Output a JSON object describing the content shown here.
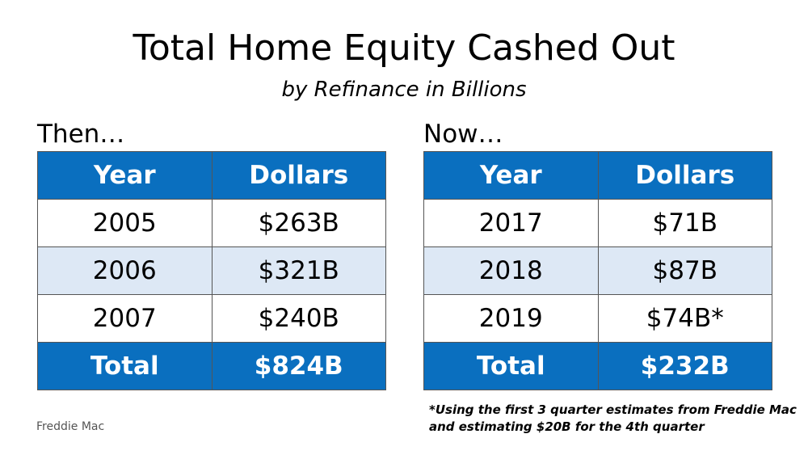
{
  "header": {
    "title": "Total Home Equity Cashed Out",
    "subtitle": "by Refinance in Billions"
  },
  "tables": [
    {
      "label": "Then…",
      "columns": [
        "Year",
        "Dollars"
      ],
      "rows": [
        [
          "2005",
          "$263B"
        ],
        [
          "2006",
          "$321B"
        ],
        [
          "2007",
          "$240B"
        ]
      ],
      "total": [
        "Total",
        "$824B"
      ]
    },
    {
      "label": "Now…",
      "columns": [
        "Year",
        "Dollars"
      ],
      "rows": [
        [
          "2017",
          "$71B"
        ],
        [
          "2018",
          "$87B"
        ],
        [
          "2019",
          "$74B*"
        ]
      ],
      "total": [
        "Total",
        "$232B"
      ]
    }
  ],
  "footnote": [
    "*Using the first 3 quarter estimates from Freddie Mac",
    "and estimating $20B for the 4th quarter"
  ],
  "source": "Freddie Mac"
}
